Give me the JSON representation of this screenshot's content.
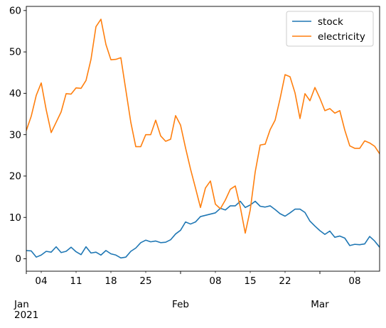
{
  "chart_data": {
    "type": "line",
    "title": "",
    "xlabel": "",
    "ylabel": "",
    "x_start": "2021-01-01",
    "x_end": "2021-03-13",
    "xlim": [
      "2021-01-01",
      "2021-03-13"
    ],
    "ylim": [
      -3,
      61
    ],
    "yticks": [
      0,
      10,
      20,
      30,
      40,
      50,
      60
    ],
    "x_minor_ticks": [
      {
        "date": "2021-01-04",
        "label": "04"
      },
      {
        "date": "2021-01-11",
        "label": "11"
      },
      {
        "date": "2021-01-18",
        "label": "18"
      },
      {
        "date": "2021-01-25",
        "label": "25"
      },
      {
        "date": "2021-02-08",
        "label": "08"
      },
      {
        "date": "2021-02-15",
        "label": "15"
      },
      {
        "date": "2021-02-22",
        "label": "22"
      },
      {
        "date": "2021-03-08",
        "label": "08"
      }
    ],
    "x_major_ticks": [
      {
        "date": "2021-01-01",
        "label": "Jan",
        "sublabel": "2021"
      },
      {
        "date": "2021-02-01",
        "label": "Feb",
        "sublabel": ""
      },
      {
        "date": "2021-03-01",
        "label": "Mar",
        "sublabel": ""
      }
    ],
    "grid": false,
    "legend_position": "top-right",
    "series": [
      {
        "name": "stock",
        "color": "#1f77b4",
        "x": [
          "2021-01-01",
          "2021-01-02",
          "2021-01-03",
          "2021-01-04",
          "2021-01-05",
          "2021-01-06",
          "2021-01-07",
          "2021-01-08",
          "2021-01-09",
          "2021-01-10",
          "2021-01-11",
          "2021-01-12",
          "2021-01-13",
          "2021-01-14",
          "2021-01-15",
          "2021-01-16",
          "2021-01-17",
          "2021-01-18",
          "2021-01-19",
          "2021-01-20",
          "2021-01-21",
          "2021-01-22",
          "2021-01-23",
          "2021-01-24",
          "2021-01-25",
          "2021-01-26",
          "2021-01-27",
          "2021-01-28",
          "2021-01-29",
          "2021-01-30",
          "2021-01-31",
          "2021-02-01",
          "2021-02-02",
          "2021-02-03",
          "2021-02-04",
          "2021-02-05",
          "2021-02-06",
          "2021-02-07",
          "2021-02-08",
          "2021-02-09",
          "2021-02-10",
          "2021-02-11",
          "2021-02-12",
          "2021-02-13",
          "2021-02-14",
          "2021-02-15",
          "2021-02-16",
          "2021-02-17",
          "2021-02-18",
          "2021-02-19",
          "2021-02-20",
          "2021-02-21",
          "2021-02-22",
          "2021-02-23",
          "2021-02-24",
          "2021-02-25",
          "2021-02-26",
          "2021-02-27",
          "2021-02-28",
          "2021-03-01",
          "2021-03-02",
          "2021-03-03",
          "2021-03-04",
          "2021-03-05",
          "2021-03-06",
          "2021-03-07",
          "2021-03-08",
          "2021-03-09",
          "2021-03-10",
          "2021-03-11",
          "2021-03-12",
          "2021-03-13"
        ],
        "values": [
          2.0,
          1.9,
          0.4,
          0.9,
          1.8,
          1.6,
          2.9,
          1.5,
          1.8,
          2.8,
          1.7,
          1.0,
          2.9,
          1.4,
          1.6,
          0.9,
          2.0,
          1.2,
          0.9,
          0.2,
          0.4,
          1.8,
          2.6,
          3.9,
          4.5,
          4.1,
          4.3,
          3.9,
          4.0,
          4.6,
          6.0,
          6.9,
          8.9,
          8.4,
          8.9,
          10.2,
          10.5,
          10.8,
          11.1,
          12.2,
          11.8,
          12.8,
          12.8,
          13.9,
          12.4,
          13.0,
          13.9,
          12.7,
          12.5,
          12.8,
          11.9,
          10.9,
          10.3,
          11.1,
          12.0,
          12.0,
          11.2,
          9.1,
          7.9,
          6.8,
          5.9,
          6.7,
          5.2,
          5.5,
          5.0,
          3.2,
          3.5,
          3.4,
          3.6,
          5.4,
          4.3,
          2.8
        ]
      },
      {
        "name": "electricity",
        "color": "#ff7f0e",
        "x": [
          "2021-01-01",
          "2021-01-02",
          "2021-01-03",
          "2021-01-04",
          "2021-01-05",
          "2021-01-06",
          "2021-01-07",
          "2021-01-08",
          "2021-01-09",
          "2021-01-10",
          "2021-01-11",
          "2021-01-12",
          "2021-01-13",
          "2021-01-14",
          "2021-01-15",
          "2021-01-16",
          "2021-01-17",
          "2021-01-18",
          "2021-01-19",
          "2021-01-20",
          "2021-01-21",
          "2021-01-22",
          "2021-01-23",
          "2021-01-24",
          "2021-01-25",
          "2021-01-26",
          "2021-01-27",
          "2021-01-28",
          "2021-01-29",
          "2021-01-30",
          "2021-01-31",
          "2021-02-01",
          "2021-02-02",
          "2021-02-03",
          "2021-02-04",
          "2021-02-05",
          "2021-02-06",
          "2021-02-07",
          "2021-02-08",
          "2021-02-09",
          "2021-02-10",
          "2021-02-11",
          "2021-02-12",
          "2021-02-13",
          "2021-02-14",
          "2021-02-15",
          "2021-02-16",
          "2021-02-17",
          "2021-02-18",
          "2021-02-19",
          "2021-02-20",
          "2021-02-21",
          "2021-02-22",
          "2021-02-23",
          "2021-02-24",
          "2021-02-25",
          "2021-02-26",
          "2021-02-27",
          "2021-02-28",
          "2021-03-01",
          "2021-03-02",
          "2021-03-03",
          "2021-03-04",
          "2021-03-05",
          "2021-03-06",
          "2021-03-07",
          "2021-03-08",
          "2021-03-09",
          "2021-03-10",
          "2021-03-11",
          "2021-03-12",
          "2021-03-13"
        ],
        "values": [
          31.0,
          34.5,
          39.5,
          42.5,
          36.0,
          30.5,
          33.0,
          35.5,
          39.9,
          39.8,
          41.3,
          41.2,
          43.1,
          48.2,
          56.1,
          57.9,
          51.8,
          48.1,
          48.2,
          48.6,
          40.8,
          33.0,
          27.1,
          27.1,
          30.0,
          30.0,
          33.5,
          29.7,
          28.4,
          28.9,
          34.6,
          32.3,
          26.8,
          21.7,
          17.1,
          12.4,
          17.1,
          18.8,
          13.2,
          12.1,
          14.2,
          16.8,
          17.6,
          12.5,
          6.2,
          11.8,
          21.0,
          27.5,
          27.7,
          31.2,
          33.5,
          38.7,
          44.5,
          44.0,
          40.1,
          33.9,
          39.9,
          38.2,
          41.4,
          38.8,
          35.8,
          36.3,
          35.2,
          35.8,
          31.1,
          27.3,
          26.7,
          26.7,
          28.5,
          28.0,
          27.2,
          25.4
        ]
      }
    ]
  }
}
